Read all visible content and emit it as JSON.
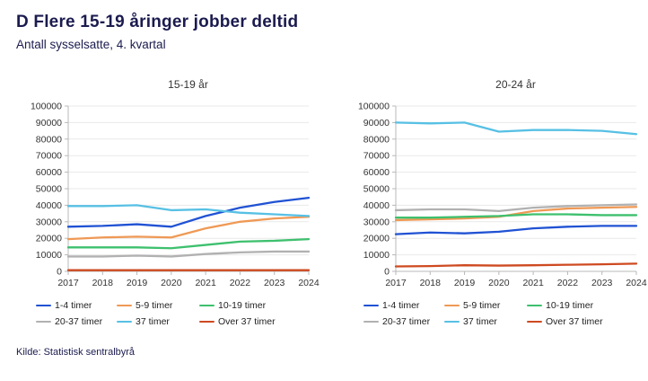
{
  "header": {
    "title": "D Flere 15-19 åringer jobber deltid",
    "subtitle": "Antall sysselsatte, 4. kvartal"
  },
  "source": "Kilde: Statistisk sentralbyrå",
  "colors": {
    "title_text": "#1b1b4f",
    "axis_text": "#333333",
    "grid": "#e9e9e9",
    "axis": "#b8b8b8",
    "legend_text": "#222222",
    "background": "#ffffff"
  },
  "chart_data": [
    {
      "type": "line",
      "title": "15-19 år",
      "x": [
        2017,
        2018,
        2019,
        2020,
        2021,
        2022,
        2023,
        2024
      ],
      "xlabel": "",
      "ylabel": "",
      "ylim": [
        0,
        100000
      ],
      "ytick_step": 10000,
      "grid": true,
      "legend_position": "bottom",
      "series": [
        {
          "name": "1-4 timer",
          "color": "#2052d3",
          "values": [
            27000,
            27500,
            28500,
            27000,
            33500,
            38500,
            42000,
            44500
          ]
        },
        {
          "name": "5-9 timer",
          "color": "#ef9955",
          "values": [
            19500,
            20500,
            21000,
            20500,
            26000,
            30000,
            32000,
            33000
          ]
        },
        {
          "name": "10-19 timer",
          "color": "#3ec06e",
          "values": [
            14500,
            14500,
            14500,
            14000,
            16000,
            18000,
            18500,
            19500
          ]
        },
        {
          "name": "20-37 timer",
          "color": "#b1b1b1",
          "values": [
            9000,
            9000,
            9500,
            9000,
            10500,
            11500,
            12000,
            12000
          ]
        },
        {
          "name": "37 timer",
          "color": "#57c0e4",
          "values": [
            39500,
            39500,
            40000,
            37000,
            37500,
            35500,
            34500,
            33500
          ]
        },
        {
          "name": "Over 37 timer",
          "color": "#ce4a21",
          "values": [
            700,
            700,
            700,
            700,
            700,
            700,
            700,
            700
          ]
        }
      ]
    },
    {
      "type": "line",
      "title": "20-24 år",
      "x": [
        2017,
        2018,
        2019,
        2020,
        2021,
        2022,
        2023,
        2024
      ],
      "xlabel": "",
      "ylabel": "",
      "ylim": [
        0,
        100000
      ],
      "ytick_step": 10000,
      "grid": true,
      "legend_position": "bottom",
      "series": [
        {
          "name": "1-4 timer",
          "color": "#2052d3",
          "values": [
            22500,
            23500,
            23000,
            24000,
            26000,
            27000,
            27500,
            27500
          ]
        },
        {
          "name": "5-9 timer",
          "color": "#ef9955",
          "values": [
            31000,
            31500,
            32000,
            33000,
            36500,
            38000,
            38500,
            39000
          ]
        },
        {
          "name": "10-19 timer",
          "color": "#3ec06e",
          "values": [
            32500,
            32500,
            33000,
            33500,
            34500,
            34500,
            34000,
            34000
          ]
        },
        {
          "name": "20-37 timer",
          "color": "#b1b1b1",
          "values": [
            37000,
            37500,
            37500,
            36500,
            38500,
            39500,
            40000,
            40500
          ]
        },
        {
          "name": "37 timer",
          "color": "#57c0e4",
          "values": [
            90000,
            89500,
            90000,
            84500,
            85500,
            85500,
            85000,
            83000
          ]
        },
        {
          "name": "Over 37 timer",
          "color": "#ce4a21",
          "values": [
            3000,
            3200,
            3700,
            3500,
            3700,
            4000,
            4300,
            4700
          ]
        }
      ]
    }
  ]
}
